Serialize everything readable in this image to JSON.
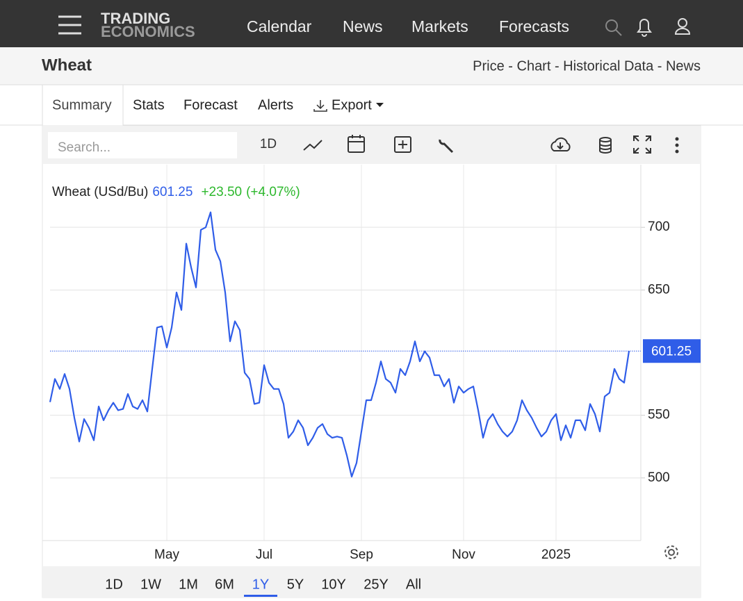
{
  "header": {
    "logo": [
      "TRADING",
      "ECONOMICS"
    ],
    "nav": [
      "Calendar",
      "News",
      "Markets",
      "Forecasts"
    ]
  },
  "subheader": {
    "title": "Wheat",
    "links": "Price - Chart - Historical Data - News"
  },
  "tabs": [
    "Summary",
    "Stats",
    "Forecast",
    "Alerts",
    "Export"
  ],
  "active_tab": "Summary",
  "toolbar": {
    "search_placeholder": "Search...",
    "interval": "1D"
  },
  "chart_data": {
    "type": "line",
    "categories": [
      null,
      null,
      null,
      null,
      null,
      null,
      null,
      null,
      null,
      null,
      null,
      null,
      null,
      null,
      null,
      null,
      null,
      null,
      null,
      null,
      null,
      null,
      null,
      null,
      "May",
      null,
      null,
      null,
      null,
      null,
      null,
      null,
      null,
      null,
      null,
      null,
      null,
      null,
      null,
      null,
      null,
      null,
      null,
      null,
      "Jul",
      null,
      null,
      null,
      null,
      null,
      null,
      null,
      null,
      null,
      null,
      null,
      null,
      null,
      null,
      null,
      null,
      null,
      null,
      null,
      "Sep",
      null,
      null,
      null,
      null,
      null,
      null,
      null,
      null,
      null,
      null,
      null,
      null,
      null,
      null,
      null,
      null,
      null,
      null,
      null,
      null,
      "Nov",
      null,
      null,
      null,
      null,
      null,
      null,
      null,
      null,
      null,
      null,
      null,
      null,
      null,
      null,
      null,
      null,
      null,
      null,
      "2025",
      null,
      null,
      null,
      null,
      null,
      null,
      null,
      null,
      null,
      null,
      null,
      null,
      null,
      null,
      null
    ],
    "series": [
      {
        "name": "Wheat (USd/Bu)",
        "color": "#2f5de8",
        "values": [
          560.5,
          579,
          571,
          583,
          571,
          548,
          529,
          547,
          540,
          530,
          557,
          546,
          554,
          560,
          554,
          555,
          567,
          557,
          555,
          562,
          553,
          587,
          620,
          621,
          604,
          620,
          648,
          634,
          687,
          668,
          652,
          698,
          700,
          712,
          682,
          673,
          648,
          609,
          625,
          618,
          584,
          579,
          559,
          560,
          590,
          576,
          571,
          571,
          559,
          532,
          537,
          546,
          540,
          526,
          532,
          540,
          543,
          535,
          532,
          533,
          532,
          518,
          501,
          512,
          537,
          562,
          562,
          576,
          593,
          579,
          576,
          568,
          587,
          582,
          593,
          609,
          593,
          601,
          596,
          582,
          582,
          573,
          579,
          560,
          573,
          568,
          571,
          573,
          554,
          532,
          546,
          551,
          543,
          537,
          533,
          537,
          546,
          562,
          554,
          548,
          540,
          533,
          537,
          546,
          551,
          530,
          542,
          532,
          546,
          546,
          538,
          559,
          551,
          537,
          565,
          568,
          587,
          579,
          576,
          601.25
        ]
      }
    ],
    "change": "+23.50",
    "change_pct": "(+4.07%)",
    "change_color": "#2db82d",
    "ylim": [
      450,
      750
    ],
    "yticks": [
      500,
      550,
      650,
      700
    ],
    "grid": true,
    "last_price_line": true
  },
  "ranges": [
    "1D",
    "1W",
    "1M",
    "6M",
    "1Y",
    "5Y",
    "10Y",
    "25Y",
    "All"
  ],
  "active_range": "1Y"
}
